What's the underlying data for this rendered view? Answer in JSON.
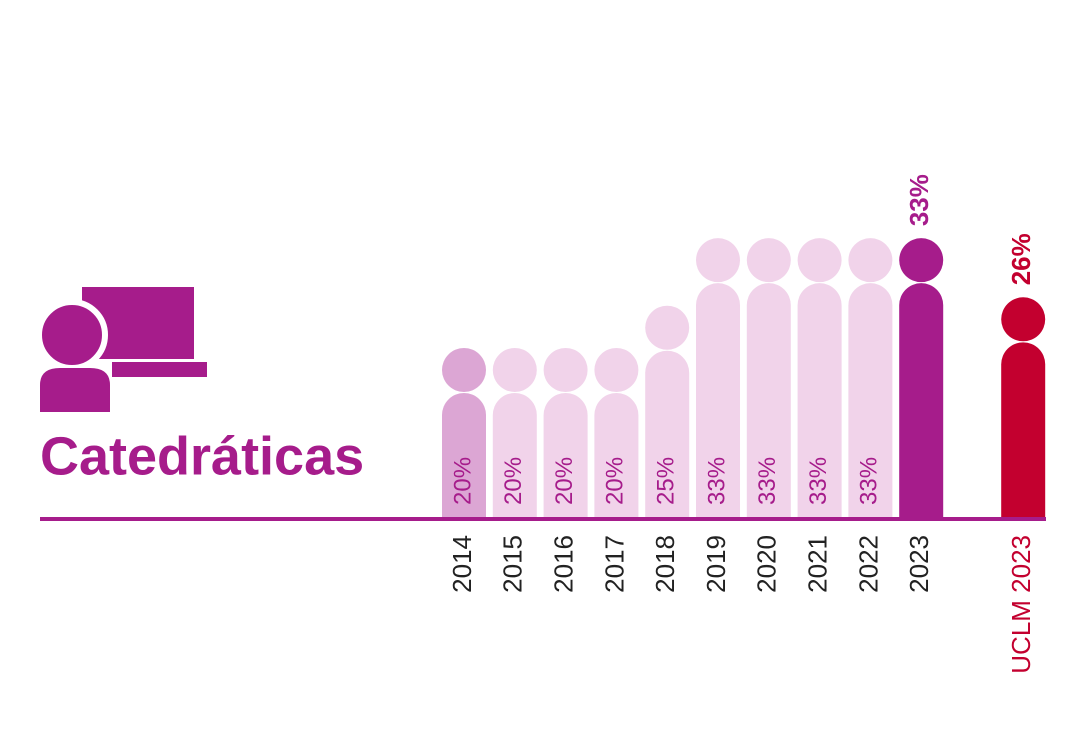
{
  "chart_data": {
    "type": "bar",
    "title": "Catedráticas",
    "categories": [
      "2014",
      "2015",
      "2016",
      "2017",
      "2018",
      "2019",
      "2020",
      "2021",
      "2022",
      "2023",
      "UCLM 2023"
    ],
    "values": [
      20,
      20,
      20,
      20,
      25,
      33,
      33,
      33,
      33,
      33,
      26
    ],
    "value_labels": [
      "20%",
      "20%",
      "20%",
      "20%",
      "25%",
      "33%",
      "33%",
      "33%",
      "33%",
      "33%",
      "26%"
    ],
    "colors": [
      "#dca6d4",
      "#f1d3ea",
      "#f1d3ea",
      "#f1d3ea",
      "#f1d3ea",
      "#f1d3ea",
      "#f1d3ea",
      "#f1d3ea",
      "#f1d3ea",
      "#a61c8b",
      "#c3002f"
    ],
    "label_position": [
      "inside",
      "inside",
      "inside",
      "inside",
      "inside",
      "inside",
      "inside",
      "inside",
      "inside",
      "above",
      "above"
    ],
    "category_colors": [
      "#222222",
      "#222222",
      "#222222",
      "#222222",
      "#222222",
      "#222222",
      "#222222",
      "#222222",
      "#222222",
      "#222222",
      "#c3002f"
    ]
  }
}
